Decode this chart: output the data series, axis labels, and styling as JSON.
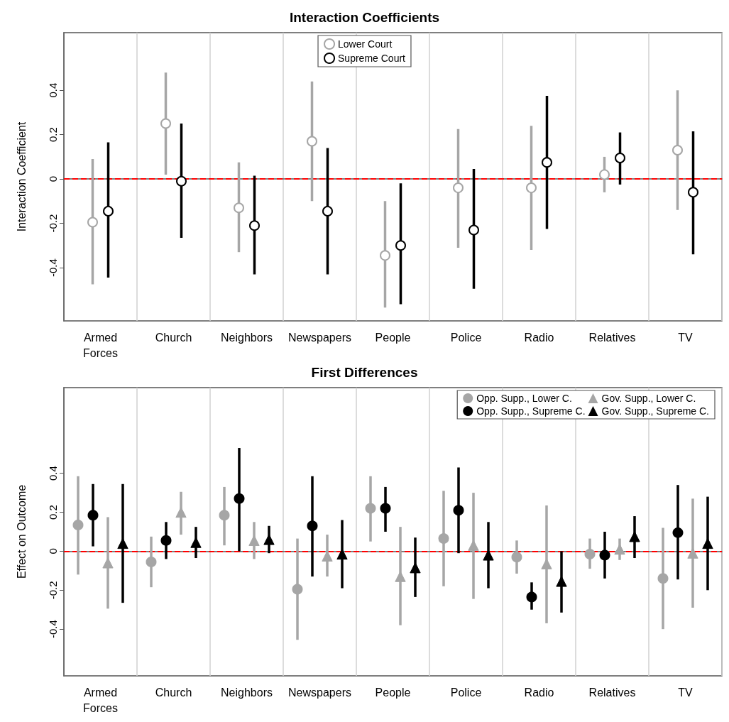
{
  "chart_data": [
    {
      "type": "scatter",
      "title": "Interaction Coefficients",
      "ylabel": "Interaction Coefficient",
      "categories": [
        "Armed Forces",
        "Church",
        "Neighbors",
        "Newspapers",
        "People",
        "Police",
        "Radio",
        "Relatives",
        "TV"
      ],
      "ylim": [
        -0.64,
        0.66
      ],
      "yticks": [
        -0.4,
        -0.2,
        0,
        0.2,
        0.4
      ],
      "grid": "x",
      "legend": "top",
      "marker": "circle",
      "ref_lines": [
        {
          "axis": "y",
          "value": 0,
          "color": "#ff0000",
          "line_style": "dashed"
        }
      ],
      "series": [
        {
          "name": "Lower Court",
          "color": "#a6a6a6",
          "values": [
            -0.195,
            0.25,
            -0.13,
            0.17,
            -0.345,
            -0.04,
            -0.04,
            0.02,
            0.13
          ],
          "errors": [
            [
              -0.475,
              0.09
            ],
            [
              0.02,
              0.48
            ],
            [
              -0.33,
              0.075
            ],
            [
              -0.1,
              0.44
            ],
            [
              -0.58,
              -0.1
            ],
            [
              -0.31,
              0.225
            ],
            [
              -0.32,
              0.24
            ],
            [
              -0.06,
              0.1
            ],
            [
              -0.14,
              0.4
            ]
          ]
        },
        {
          "name": "Supreme Court",
          "color": "#000000",
          "values": [
            -0.145,
            -0.01,
            -0.21,
            -0.145,
            -0.3,
            -0.23,
            0.075,
            0.095,
            -0.06
          ],
          "errors": [
            [
              -0.445,
              0.165
            ],
            [
              -0.265,
              0.25
            ],
            [
              -0.43,
              0.015
            ],
            [
              -0.43,
              0.14
            ],
            [
              -0.565,
              -0.02
            ],
            [
              -0.495,
              0.045
            ],
            [
              -0.225,
              0.375
            ],
            [
              -0.025,
              0.21
            ],
            [
              -0.34,
              0.215
            ]
          ]
        }
      ]
    },
    {
      "type": "scatter",
      "title": "First Differences",
      "ylabel": "Effect on Outcome",
      "categories": [
        "Armed Forces",
        "Church",
        "Neighbors",
        "Newspapers",
        "People",
        "Police",
        "Radio",
        "Relatives",
        "TV"
      ],
      "ylim": [
        -0.64,
        0.84
      ],
      "yticks": [
        -0.4,
        -0.2,
        0,
        0.2,
        0.4
      ],
      "grid": "x",
      "legend": "top right",
      "ref_lines": [
        {
          "axis": "y",
          "value": 0,
          "color": "#ff0000",
          "line_style": "dashed"
        }
      ],
      "series": [
        {
          "name": "Opp. Supp., Lower C.",
          "color": "#a6a6a6",
          "marker": "circle",
          "values": [
            0.135,
            -0.055,
            0.185,
            -0.195,
            0.22,
            0.065,
            -0.03,
            -0.015,
            -0.14
          ],
          "errors": [
            [
              -0.12,
              0.385
            ],
            [
              -0.185,
              0.075
            ],
            [
              0.03,
              0.33
            ],
            [
              -0.455,
              0.065
            ],
            [
              0.05,
              0.385
            ],
            [
              -0.18,
              0.31
            ],
            [
              -0.115,
              0.055
            ],
            [
              -0.09,
              0.065
            ],
            [
              -0.4,
              0.12
            ]
          ]
        },
        {
          "name": "Opp. Supp., Supreme C.",
          "color": "#000000",
          "marker": "circle",
          "values": [
            0.185,
            0.055,
            0.27,
            0.13,
            0.22,
            0.21,
            -0.235,
            -0.02,
            0.095
          ],
          "errors": [
            [
              0.025,
              0.345
            ],
            [
              -0.04,
              0.15
            ],
            [
              0,
              0.53
            ],
            [
              -0.13,
              0.385
            ],
            [
              0.1,
              0.33
            ],
            [
              -0.01,
              0.43
            ],
            [
              -0.3,
              -0.16
            ],
            [
              -0.14,
              0.1
            ],
            [
              -0.145,
              0.34
            ]
          ]
        },
        {
          "name": "Gov. Supp., Lower C.",
          "color": "#a6a6a6",
          "marker": "triangle",
          "values": [
            -0.06,
            0.2,
            0.055,
            -0.025,
            -0.13,
            0.03,
            -0.065,
            0.01,
            -0.01
          ],
          "errors": [
            [
              -0.295,
              0.175
            ],
            [
              0.085,
              0.305
            ],
            [
              -0.04,
              0.15
            ],
            [
              -0.13,
              0.085
            ],
            [
              -0.38,
              0.125
            ],
            [
              -0.245,
              0.3
            ],
            [
              -0.37,
              0.235
            ],
            [
              -0.045,
              0.065
            ],
            [
              -0.29,
              0.27
            ]
          ]
        },
        {
          "name": "Gov. Supp., Supreme C.",
          "color": "#000000",
          "marker": "triangle",
          "values": [
            0.04,
            0.045,
            0.06,
            -0.015,
            -0.085,
            -0.02,
            -0.155,
            0.075,
            0.04
          ],
          "errors": [
            [
              -0.265,
              0.345
            ],
            [
              -0.035,
              0.125
            ],
            [
              -0.01,
              0.13
            ],
            [
              -0.19,
              0.16
            ],
            [
              -0.235,
              0.07
            ],
            [
              -0.19,
              0.15
            ],
            [
              -0.315,
              0
            ],
            [
              -0.035,
              0.18
            ],
            [
              -0.2,
              0.28
            ]
          ]
        }
      ]
    }
  ]
}
